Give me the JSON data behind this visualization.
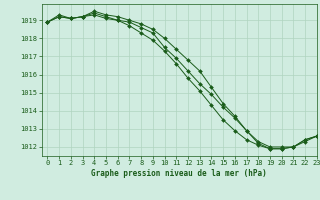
{
  "title": "Graphe pression niveau de la mer (hPa)",
  "xlim": [
    -0.5,
    23
  ],
  "ylim": [
    1011.5,
    1019.9
  ],
  "yticks": [
    1012,
    1013,
    1014,
    1015,
    1016,
    1017,
    1018,
    1019
  ],
  "xticks": [
    0,
    1,
    2,
    3,
    4,
    5,
    6,
    7,
    8,
    9,
    10,
    11,
    12,
    13,
    14,
    15,
    16,
    17,
    18,
    19,
    20,
    21,
    22,
    23
  ],
  "background_color": "#d0ece0",
  "grid_color": "#b0d4c0",
  "line_color": "#1a5c1a",
  "title_color": "#1a5c1a",
  "series": [
    [
      1018.9,
      1019.2,
      1019.1,
      1019.2,
      1019.3,
      1019.1,
      1019.0,
      1018.9,
      1018.6,
      1018.3,
      1017.5,
      1016.9,
      1016.2,
      1015.5,
      1014.9,
      1014.2,
      1013.6,
      1012.9,
      1012.3,
      1012.0,
      1012.0,
      1012.0,
      1012.3,
      1012.6
    ],
    [
      1018.9,
      1019.2,
      1019.1,
      1019.2,
      1019.4,
      1019.2,
      1019.0,
      1018.7,
      1018.3,
      1017.9,
      1017.3,
      1016.6,
      1015.8,
      1015.1,
      1014.3,
      1013.5,
      1012.9,
      1012.4,
      1012.1,
      1011.9,
      1011.9,
      1012.0,
      1012.4,
      1012.6
    ],
    [
      1018.9,
      1019.3,
      1019.1,
      1019.2,
      1019.5,
      1019.3,
      1019.2,
      1019.0,
      1018.8,
      1018.5,
      1018.0,
      1017.4,
      1016.8,
      1016.2,
      1015.3,
      1014.4,
      1013.7,
      1012.9,
      1012.2,
      1011.9,
      1011.9,
      1012.0,
      1012.4,
      1012.6
    ]
  ],
  "tick_fontsize": 5,
  "title_fontsize": 5.5,
  "linewidth": 0.7,
  "markersize": 2.0
}
